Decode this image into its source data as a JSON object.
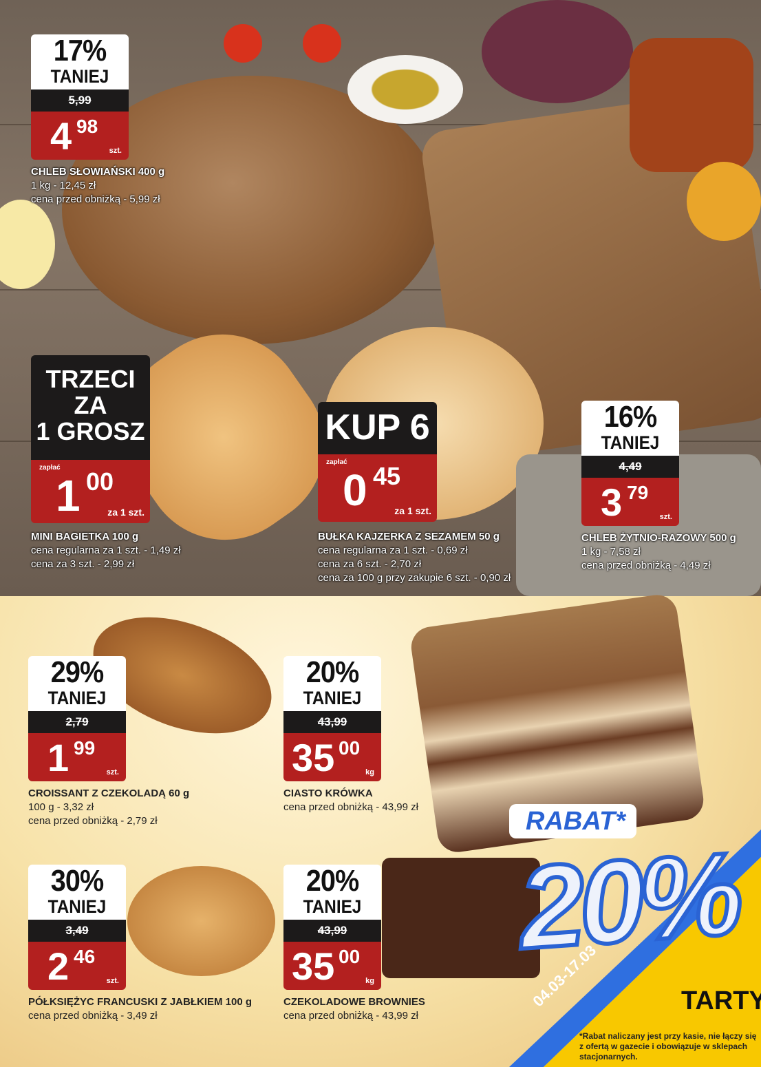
{
  "colors": {
    "price_red": "#b3201f",
    "tag_black": "#1c1a1a",
    "rabat_blue": "#2a63d4",
    "yellow": "#f8c800"
  },
  "products": [
    {
      "id": "chleb-slowianski",
      "discount": "17%",
      "discount_label": "TANIEJ",
      "old_price": "5,99",
      "price_int": "4",
      "price_dec": "98",
      "unit": "szt.",
      "name": "CHLEB SŁOWIAŃSKI 400 g",
      "lines": [
        "1 kg - 12,45 zł",
        "cena przed obniżką - 5,99 zł"
      ]
    },
    {
      "id": "chleb-zytnio-razowy",
      "discount": "16%",
      "discount_label": "TANIEJ",
      "old_price": "4,49",
      "price_int": "3",
      "price_dec": "79",
      "unit": "szt.",
      "name": "CHLEB ŻYTNIO-RAZOWY 500 g",
      "lines": [
        "1 kg - 7,58 zł",
        "cena przed obniżką - 4,49 zł"
      ]
    },
    {
      "id": "croissant",
      "discount": "29%",
      "discount_label": "TANIEJ",
      "old_price": "2,79",
      "price_int": "1",
      "price_dec": "99",
      "unit": "szt.",
      "name": "CROISSANT Z CZEKOLADĄ 60 g",
      "lines": [
        "100 g - 3,32 zł",
        "cena przed obniżką - 2,79 zł"
      ]
    },
    {
      "id": "ciasto-krowka",
      "discount": "20%",
      "discount_label": "TANIEJ",
      "old_price": "43,99",
      "price_int": "35",
      "price_dec": "00",
      "unit": "kg",
      "name": "CIASTO KRÓWKA",
      "lines": [
        "cena przed obniżką - 43,99 zł"
      ]
    },
    {
      "id": "polksiezyc",
      "discount": "30%",
      "discount_label": "TANIEJ",
      "old_price": "3,49",
      "price_int": "2",
      "price_dec": "46",
      "unit": "szt.",
      "name": "PÓŁKSIĘŻYC FRANCUSKI Z JABŁKIEM 100 g",
      "lines": [
        "cena przed obniżką - 3,49 zł"
      ]
    },
    {
      "id": "brownies",
      "discount": "20%",
      "discount_label": "TANIEJ",
      "old_price": "43,99",
      "price_int": "35",
      "price_dec": "00",
      "unit": "kg",
      "name": "CZEKOLADOWE BROWNIES",
      "lines": [
        "cena przed obniżką - 43,99 zł"
      ]
    }
  ],
  "promos": [
    {
      "id": "mini-bagietka",
      "headline": [
        "TRZECI",
        "ZA",
        "1 GROSZ"
      ],
      "pay_label": "zapłać",
      "price_int": "1",
      "price_dec": "00",
      "unit": "za 1 szt.",
      "name": "MINI BAGIETKA 100 g",
      "lines": [
        "cena regularna za 1 szt. - 1,49 zł",
        "cena za 3 szt. - 2,99 zł"
      ]
    },
    {
      "id": "kajzerka",
      "headline": [
        "KUP 6"
      ],
      "pay_label": "zapłać",
      "price_int": "0",
      "price_dec": "45",
      "unit": "za 1 szt.",
      "name": "BUŁKA KAJZERKA Z SEZAMEM 50 g",
      "lines": [
        "cena regularna za 1 szt. - 0,69 zł",
        "cena za 6 szt. - 2,70 zł",
        "cena za 100 g przy zakupie 6 szt. - 0,90 zł"
      ]
    }
  ],
  "rabat": {
    "label": "RABAT*",
    "value": "20%",
    "dates": "04.03-17.03",
    "category": "TARTY",
    "note": "*Rabat naliczany jest przy kasie, nie łączy się z ofertą w gazecie i obowiązuje w sklepach stacjonarnych."
  }
}
